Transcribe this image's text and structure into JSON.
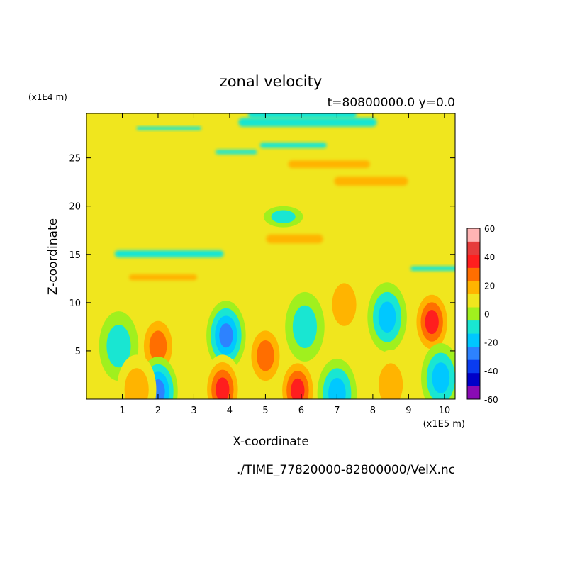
{
  "chart_data": {
    "type": "heatmap",
    "title": "zonal velocity",
    "subtitle": "t=80800000.0 y=0.0",
    "xlabel": "X-coordinate",
    "ylabel": "Z-coordinate",
    "x_scale_label": "(x1E5 m)",
    "y_scale_label": "(x1E4 m)",
    "file_label": "./TIME_77820000-82800000/VelX.nc",
    "xlim": [
      0,
      10.3
    ],
    "ylim": [
      0,
      29.6
    ],
    "x_ticks": [
      1,
      2,
      3,
      4,
      5,
      6,
      7,
      8,
      9,
      10
    ],
    "y_ticks": [
      5,
      10,
      15,
      20,
      25
    ],
    "colorbar": {
      "levels": [
        -60,
        -50,
        -40,
        -30,
        -20,
        -10,
        0,
        10,
        20,
        30,
        40,
        50,
        60
      ],
      "tick_labels": [
        "60",
        "40",
        "20",
        "0",
        "-20",
        "-40",
        "-60"
      ],
      "tick_values": [
        60,
        40,
        20,
        0,
        -20,
        -40,
        -60
      ],
      "colors": [
        "#8a0ab4",
        "#0000c8",
        "#0a3cf0",
        "#2d82ff",
        "#00c8ff",
        "#19e6d2",
        "#a0f01e",
        "#f0e61e",
        "#ffb400",
        "#ff6e00",
        "#ff1e1e",
        "#e63c3c",
        "#ffb4b4"
      ]
    },
    "features": [
      {
        "x": 3.9,
        "z": 6.6,
        "value": -35
      },
      {
        "x": 8.4,
        "z": 8.5,
        "value": -30
      },
      {
        "x": 9.65,
        "z": 8.0,
        "value": 38
      },
      {
        "x": 5.0,
        "z": 4.5,
        "value": 28
      },
      {
        "x": 2.0,
        "z": 5.5,
        "value": 25
      },
      {
        "x": 3.8,
        "z": 1.0,
        "value": 42
      },
      {
        "x": 5.9,
        "z": 0.9,
        "value": 40
      },
      {
        "x": 2.0,
        "z": 0.8,
        "value": -40
      },
      {
        "x": 9.9,
        "z": 2.2,
        "value": -32
      },
      {
        "x": 6.1,
        "z": 7.5,
        "value": -18
      },
      {
        "x": 7.2,
        "z": 9.8,
        "value": 22
      },
      {
        "x": 0.75,
        "z": 9.5,
        "value": 12
      },
      {
        "x": 0.9,
        "z": 5.5,
        "value": -22
      },
      {
        "x": 1.4,
        "z": 1.0,
        "value": 20
      },
      {
        "x": 5.5,
        "z": 18.9,
        "value": -22
      },
      {
        "x": 8.5,
        "z": 1.5,
        "value": 15
      },
      {
        "x": 7.0,
        "z": 0.6,
        "value": -25
      }
    ]
  }
}
